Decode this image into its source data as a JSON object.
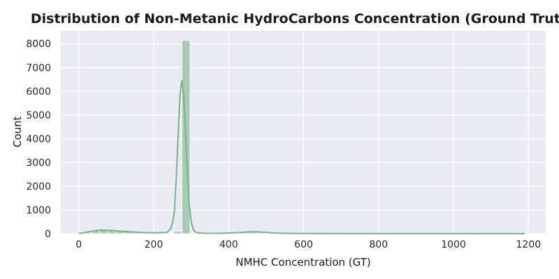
{
  "chart_data": {
    "type": "bar",
    "title": "Distribution of Non-Metanic HydroCarbons Concentration (Ground Truth)",
    "xlabel": "NMHC Concentration (GT)",
    "ylabel": "Count",
    "xlim": [
      -48,
      1246
    ],
    "ylim": [
      0,
      8550
    ],
    "xticks": [
      0,
      200,
      400,
      600,
      800,
      1000,
      1200
    ],
    "yticks": [
      0,
      1000,
      2000,
      3000,
      4000,
      5000,
      6000,
      7000,
      8000
    ],
    "grid": true,
    "bins": [
      {
        "x0": 11,
        "x1": 33,
        "count": 60
      },
      {
        "x0": 33,
        "x1": 55,
        "count": 130
      },
      {
        "x0": 55,
        "x1": 77,
        "count": 170
      },
      {
        "x0": 77,
        "x1": 99,
        "count": 140
      },
      {
        "x0": 99,
        "x1": 121,
        "count": 110
      },
      {
        "x0": 121,
        "x1": 143,
        "count": 90
      },
      {
        "x0": 143,
        "x1": 165,
        "count": 70
      },
      {
        "x0": 165,
        "x1": 187,
        "count": 50
      },
      {
        "x0": 187,
        "x1": 209,
        "count": 40
      },
      {
        "x0": 209,
        "x1": 231,
        "count": 30
      },
      {
        "x0": 231,
        "x1": 253,
        "count": 30
      },
      {
        "x0": 253,
        "x1": 275,
        "count": 100
      },
      {
        "x0": 275,
        "x1": 297,
        "count": 8150
      },
      {
        "x0": 297,
        "x1": 319,
        "count": 20
      },
      {
        "x0": 319,
        "x1": 341,
        "count": 10
      },
      {
        "x0": 341,
        "x1": 363,
        "count": 10
      },
      {
        "x0": 363,
        "x1": 385,
        "count": 10
      },
      {
        "x0": 385,
        "x1": 407,
        "count": 10
      },
      {
        "x0": 407,
        "x1": 429,
        "count": 30
      },
      {
        "x0": 429,
        "x1": 451,
        "count": 50
      },
      {
        "x0": 451,
        "x1": 473,
        "count": 60
      },
      {
        "x0": 473,
        "x1": 495,
        "count": 50
      },
      {
        "x0": 495,
        "x1": 517,
        "count": 30
      },
      {
        "x0": 517,
        "x1": 539,
        "count": 20
      },
      {
        "x0": 539,
        "x1": 561,
        "count": 10
      }
    ],
    "kde": {
      "x": [
        0,
        20,
        40,
        60,
        80,
        100,
        120,
        150,
        180,
        210,
        235,
        245,
        250,
        255,
        260,
        265,
        270,
        275,
        280,
        285,
        290,
        295,
        300,
        305,
        310,
        320,
        340,
        380,
        420,
        460,
        480,
        520,
        560,
        600,
        700,
        800,
        900,
        1000,
        1100,
        1190
      ],
      "y": [
        5,
        60,
        120,
        150,
        140,
        120,
        95,
        65,
        45,
        35,
        50,
        200,
        450,
        900,
        2300,
        4100,
        5800,
        6450,
        5800,
        4200,
        2600,
        1200,
        500,
        200,
        80,
        30,
        15,
        15,
        40,
        80,
        75,
        30,
        12,
        8,
        5,
        3,
        2,
        2,
        1,
        1
      ]
    }
  },
  "colors": {
    "plot_bg": "#eaeaf2",
    "grid": "#ffffff",
    "bar_fill": "#a8cbb5",
    "bar_edge": "#ffffff",
    "kde_line": "#72b58a"
  }
}
